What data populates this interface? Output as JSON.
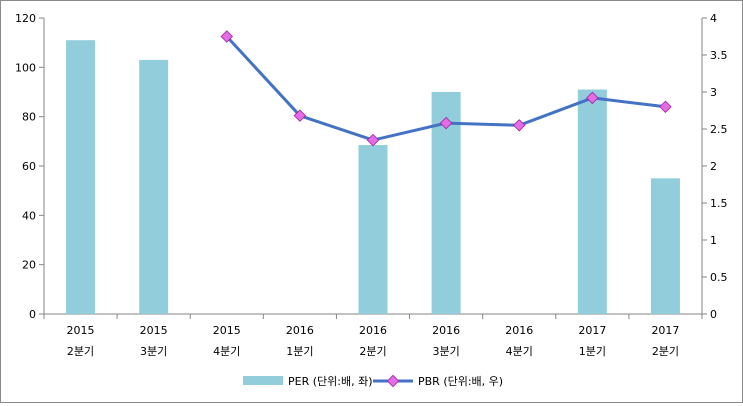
{
  "chart_data": {
    "type": "bar+line",
    "categories": [
      {
        "year": "2015",
        "quarter": "2분기"
      },
      {
        "year": "2015",
        "quarter": "3분기"
      },
      {
        "year": "2015",
        "quarter": "4분기"
      },
      {
        "year": "2016",
        "quarter": "1분기"
      },
      {
        "year": "2016",
        "quarter": "2분기"
      },
      {
        "year": "2016",
        "quarter": "3분기"
      },
      {
        "year": "2016",
        "quarter": "4분기"
      },
      {
        "year": "2017",
        "quarter": "1분기"
      },
      {
        "year": "2017",
        "quarter": "2분기"
      }
    ],
    "series": [
      {
        "name": "PER (단위:배, 좌)",
        "type": "bar",
        "axis": "left",
        "color": "#92CDDC",
        "values": [
          111,
          103,
          null,
          null,
          68.5,
          90,
          null,
          91,
          55
        ]
      },
      {
        "name": "PBR (단위:배, 우)",
        "type": "line",
        "axis": "right",
        "color": "#4472C4",
        "marker_color": "#E46CE4",
        "values": [
          null,
          null,
          3.75,
          2.68,
          2.35,
          2.58,
          2.55,
          2.92,
          2.8
        ]
      }
    ],
    "y_left": {
      "range": [
        0,
        120
      ],
      "ticks": [
        "0",
        "20",
        "40",
        "60",
        "80",
        "100",
        "120"
      ]
    },
    "y_right": {
      "range": [
        0,
        4
      ],
      "ticks": [
        "0",
        "0.5",
        "1",
        "1.5",
        "2",
        "2.5",
        "3",
        "3.5",
        "4"
      ]
    },
    "grid": false,
    "legend_position": "bottom"
  }
}
